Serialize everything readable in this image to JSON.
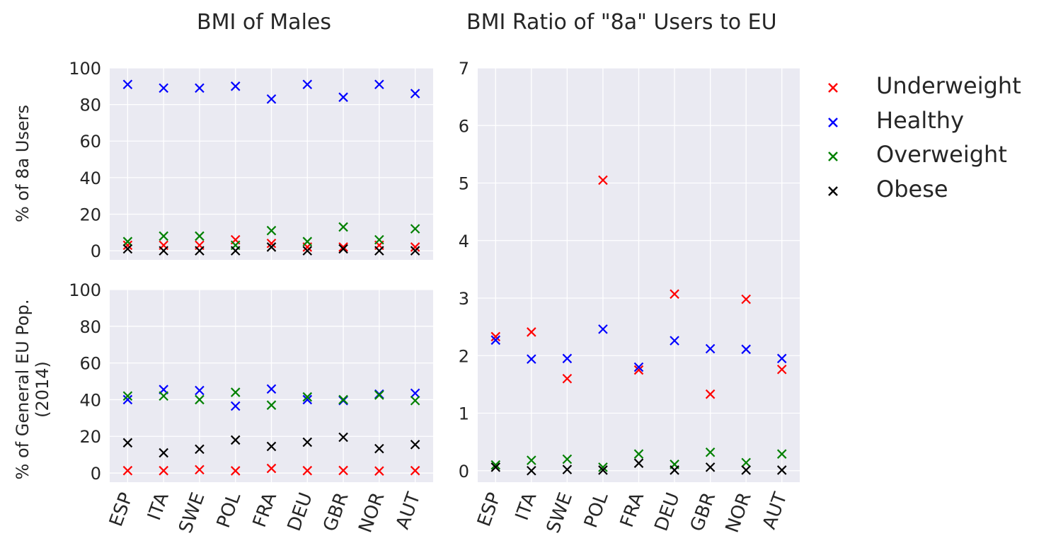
{
  "figure": {
    "title_left": "BMI of Males",
    "title_right": "BMI Ratio of \"8a\" Users to EU"
  },
  "legend": [
    {
      "label": "Underweight",
      "color": "#ff0000"
    },
    {
      "label": "Healthy",
      "color": "#0000ff"
    },
    {
      "label": "Overweight",
      "color": "#008000"
    },
    {
      "label": "Obese",
      "color": "#000000"
    }
  ],
  "chart_data": [
    {
      "type": "scatter",
      "marker": "x",
      "title": "BMI of Males",
      "ylabel": "% of 8a Users",
      "xlabel": "",
      "categories": [
        "ESP",
        "ITA",
        "SWE",
        "POL",
        "FRA",
        "DEU",
        "GBR",
        "NOR",
        "AUT"
      ],
      "ylim": [
        -5,
        100
      ],
      "yticks": [
        0,
        20,
        40,
        60,
        80,
        100
      ],
      "grid": true,
      "series": [
        {
          "name": "Underweight",
          "color": "#ff0000",
          "values": [
            3,
            3,
            3,
            6,
            4,
            2,
            2,
            3,
            2
          ]
        },
        {
          "name": "Healthy",
          "color": "#0000ff",
          "values": [
            91,
            89,
            89,
            90,
            83,
            91,
            84,
            91,
            86
          ]
        },
        {
          "name": "Overweight",
          "color": "#008000",
          "values": [
            5,
            8,
            8,
            3,
            11,
            5,
            13,
            6,
            12
          ]
        },
        {
          "name": "Obese",
          "color": "#000000",
          "values": [
            1,
            0,
            0,
            0,
            2,
            0,
            1,
            0,
            0
          ]
        }
      ]
    },
    {
      "type": "scatter",
      "marker": "x",
      "title": "",
      "ylabel": "% of General EU Pop.\n(2014)",
      "xlabel": "",
      "categories": [
        "ESP",
        "ITA",
        "SWE",
        "POL",
        "FRA",
        "DEU",
        "GBR",
        "NOR",
        "AUT"
      ],
      "ylim": [
        -5,
        100
      ],
      "yticks": [
        0,
        20,
        40,
        60,
        80,
        100
      ],
      "grid": true,
      "series": [
        {
          "name": "Underweight",
          "color": "#ff0000",
          "values": [
            1.3,
            1.3,
            1.8,
            1.2,
            2.5,
            1.3,
            1.4,
            1.1,
            1.3
          ]
        },
        {
          "name": "Healthy",
          "color": "#0000ff",
          "values": [
            40,
            45.5,
            45,
            36.5,
            45.8,
            40,
            39.5,
            43,
            43.5
          ]
        },
        {
          "name": "Overweight",
          "color": "#008000",
          "values": [
            42,
            42,
            40,
            44,
            37,
            41.5,
            40,
            42.5,
            39.5
          ]
        },
        {
          "name": "Obese",
          "color": "#000000",
          "values": [
            16.5,
            11,
            13,
            18,
            14.5,
            16.8,
            19.5,
            13.3,
            15.5
          ]
        }
      ]
    },
    {
      "type": "scatter",
      "marker": "x",
      "title": "BMI Ratio of \"8a\" Users to EU",
      "ylabel": "",
      "xlabel": "",
      "categories": [
        "ESP",
        "ITA",
        "SWE",
        "POL",
        "FRA",
        "DEU",
        "GBR",
        "NOR",
        "AUT"
      ],
      "ylim": [
        -0.2,
        7
      ],
      "yticks": [
        0,
        1,
        2,
        3,
        4,
        5,
        6,
        7
      ],
      "grid": true,
      "series": [
        {
          "name": "Underweight",
          "color": "#ff0000",
          "values": [
            2.33,
            2.41,
            1.6,
            5.05,
            1.75,
            3.07,
            1.33,
            2.98,
            1.76
          ]
        },
        {
          "name": "Healthy",
          "color": "#0000ff",
          "values": [
            2.27,
            1.94,
            1.95,
            2.46,
            1.8,
            2.26,
            2.12,
            2.11,
            1.95
          ]
        },
        {
          "name": "Overweight",
          "color": "#008000",
          "values": [
            0.1,
            0.18,
            0.2,
            0.06,
            0.29,
            0.11,
            0.32,
            0.14,
            0.29
          ]
        },
        {
          "name": "Obese",
          "color": "#000000",
          "values": [
            0.06,
            0.0,
            0.02,
            0.01,
            0.13,
            0.01,
            0.06,
            0.01,
            0.01
          ]
        }
      ]
    }
  ]
}
